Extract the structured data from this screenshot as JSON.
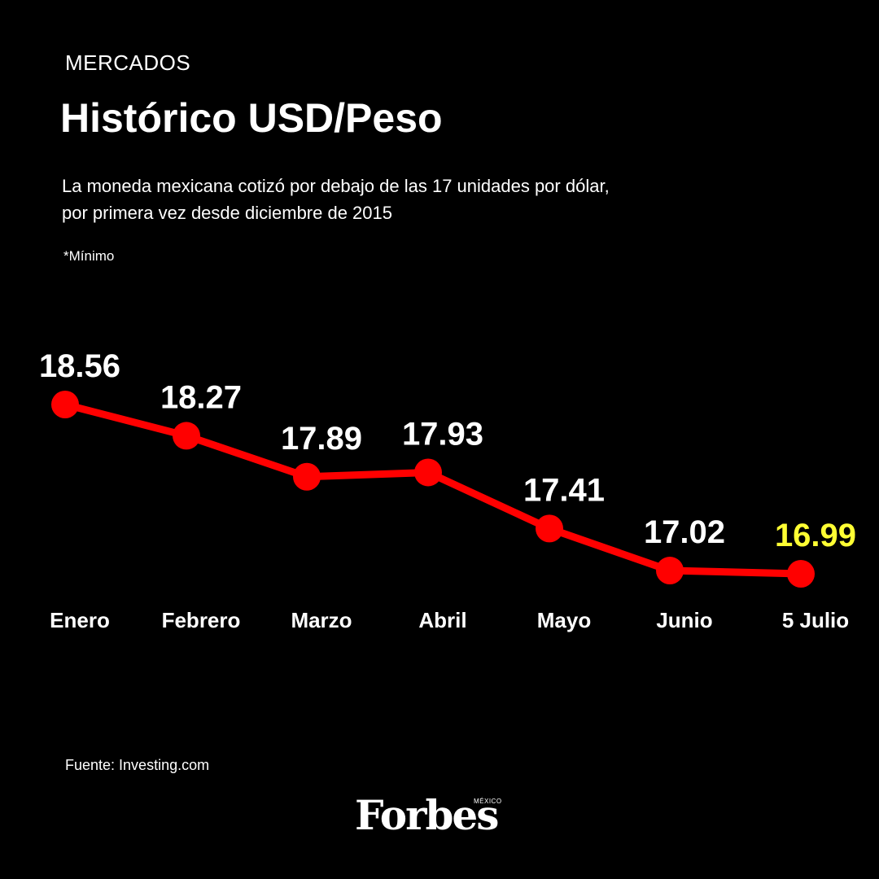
{
  "header": {
    "section": "MERCADOS",
    "title": "Histórico USD/Peso",
    "subtitle_line1": "La moneda mexicana cotizó por debajo de las 17 unidades por dólar,",
    "subtitle_line2": "por primera vez desde diciembre de 2015",
    "note": "*Mínimo"
  },
  "footer": {
    "source": "Fuente: Investing.com",
    "logo": "Forbes",
    "logo_sub": "MÉXICO"
  },
  "colors": {
    "background": "#000000",
    "line": "#ff0000",
    "label": "#ffffff",
    "highlight": "#ffff33"
  },
  "chart_data": {
    "type": "line",
    "title": "Histórico USD/Peso",
    "categories": [
      "Enero",
      "Febrero",
      "Marzo",
      "Abril",
      "Mayo",
      "Junio",
      "5 Julio"
    ],
    "values": [
      18.56,
      18.27,
      17.89,
      17.93,
      17.41,
      17.02,
      16.99
    ],
    "value_labels": [
      "18.56",
      "18.27",
      "17.89",
      "17.93",
      "17.41",
      "17.02",
      "16.99"
    ],
    "highlight_index": 6,
    "xlabel": "",
    "ylabel": "",
    "grid": false,
    "legend": "none"
  }
}
